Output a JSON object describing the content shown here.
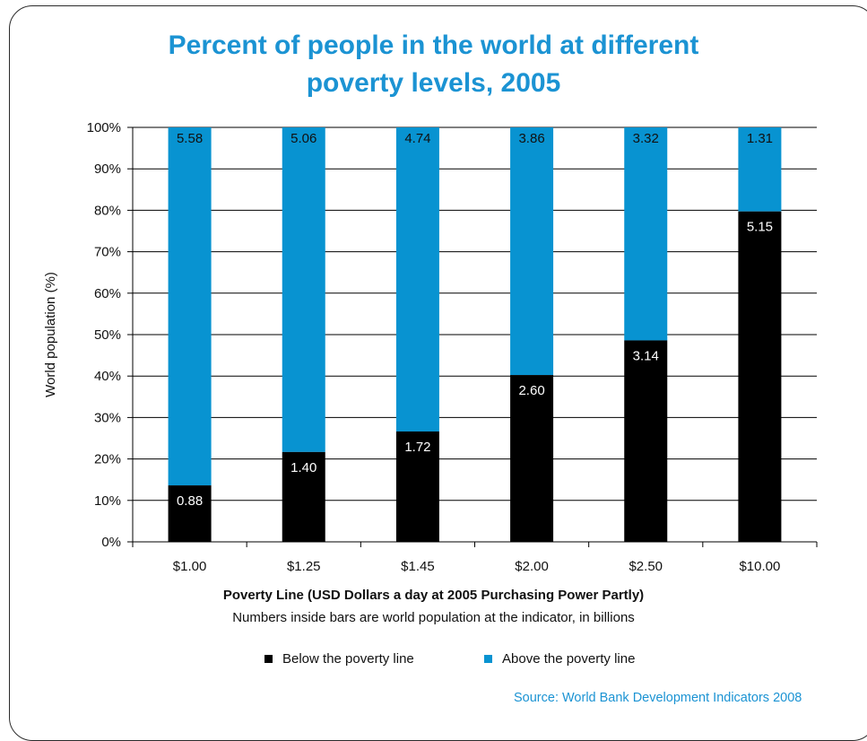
{
  "title_line1": "Percent of people in the world at different",
  "title_line2": "poverty levels, 2005",
  "chart_data": {
    "type": "bar",
    "stacked": true,
    "percent_stacked": true,
    "categories": [
      "$1.00",
      "$1.25",
      "$1.45",
      "$2.00",
      "$2.50",
      "$10.00"
    ],
    "series": [
      {
        "name": "Below the poverty line",
        "values": [
          0.88,
          1.4,
          1.72,
          2.6,
          3.14,
          5.15
        ],
        "color": "#000000"
      },
      {
        "name": "Above the poverty line",
        "values": [
          5.58,
          5.06,
          4.74,
          3.86,
          3.32,
          1.31
        ],
        "color": "#0893d1"
      }
    ],
    "data_labels": {
      "below": [
        "0.88",
        "1.40",
        "1.72",
        "2.60",
        "3.14",
        "5.15"
      ],
      "above": [
        "5.58",
        "5.06",
        "4.74",
        "3.86",
        "3.32",
        "1.31"
      ]
    },
    "ylabel": "World population (%)",
    "xlabel": "Poverty Line (USD Dollars a day at 2005 Purchasing Power Partly)",
    "yticks": [
      "0%",
      "10%",
      "20%",
      "30%",
      "40%",
      "50%",
      "60%",
      "70%",
      "80%",
      "90%",
      "100%"
    ],
    "ylim": [
      0,
      100
    ],
    "grid": true,
    "legend_position": "bottom"
  },
  "subtitle_note": "Numbers inside bars are world population at the indicator, in billions",
  "source": "Source: World Bank Development Indicators 2008"
}
